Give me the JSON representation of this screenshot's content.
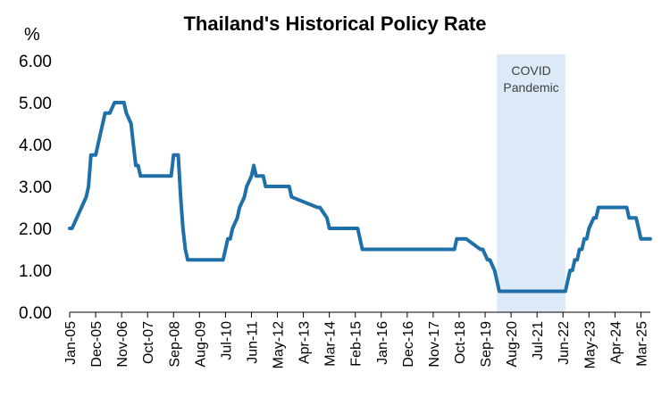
{
  "chart_data": {
    "type": "line",
    "title": "Thailand's Historical Policy Rate",
    "ylabel": "%",
    "xlabel": "",
    "ylim": [
      0,
      6
    ],
    "yticks": [
      "0.00",
      "1.00",
      "2.00",
      "3.00",
      "4.00",
      "5.00",
      "6.00"
    ],
    "xticks": [
      "Jan-05",
      "Dec-05",
      "Nov-06",
      "Oct-07",
      "Sep-08",
      "Aug-09",
      "Jul-10",
      "Jun-11",
      "May-12",
      "Apr-13",
      "Mar-14",
      "Feb-15",
      "Jan-16",
      "Dec-16",
      "Nov-17",
      "Oct-18",
      "Sep-19",
      "Aug-20",
      "Jul-21",
      "Jun-22",
      "May-23",
      "Apr-24",
      "Mar-25"
    ],
    "grid": false,
    "line_color": "#1f6fa8",
    "shade_color": "#dce9f7",
    "annotation": {
      "lines": [
        "COVID",
        "Pandemic"
      ],
      "x_start": "Feb-20",
      "x_end": "Jul-22"
    },
    "series": [
      {
        "x": [
          "Jan-05",
          "Feb-05",
          "Apr-05",
          "Jun-05",
          "Aug-05",
          "Sep-05",
          "Oct-05",
          "Dec-05",
          "Feb-06",
          "Mar-06",
          "Apr-06",
          "Jun-06",
          "Aug-06",
          "Sep-06",
          "Oct-06",
          "Nov-06",
          "Dec-06",
          "Jan-07",
          "Mar-07",
          "Apr-07",
          "May-07",
          "Jun-07",
          "Jul-07",
          "Aug-08",
          "Sep-08",
          "Nov-08",
          "Dec-08",
          "Jan-09",
          "Feb-09",
          "Mar-09",
          "Apr-09",
          "Jun-10",
          "Jul-10",
          "Aug-10",
          "Sep-10",
          "Oct-10",
          "Dec-10",
          "Jan-11",
          "Mar-11",
          "Apr-11",
          "Jun-11",
          "Jul-11",
          "Aug-11",
          "Sep-11",
          "Nov-11",
          "Dec-11",
          "Jan-12",
          "Feb-12",
          "Oct-12",
          "Nov-12",
          "Oct-13",
          "Nov-13",
          "Feb-14",
          "Mar-14",
          "Mar-15",
          "Apr-15",
          "Apr-15",
          "May-15",
          "Aug-18",
          "Sep-18",
          "Dec-18",
          "Jan-19",
          "Jul-19",
          "Aug-19",
          "Oct-19",
          "Nov-19",
          "Jan-20",
          "Feb-20",
          "Mar-20",
          "Apr-20",
          "May-20",
          "Jul-22",
          "Aug-22",
          "Sep-22",
          "Oct-22",
          "Nov-22",
          "Dec-22",
          "Jan-23",
          "Feb-23",
          "Mar-23",
          "Apr-23",
          "May-23",
          "Jul-23",
          "Aug-23",
          "Sep-23",
          "Sep-24",
          "Oct-24",
          "Dec-24",
          "Jan-25",
          "Feb-25",
          "Mar-25",
          "Jul-25"
        ],
        "y": [
          2.0,
          2.0,
          2.25,
          2.5,
          2.75,
          3.0,
          3.75,
          3.75,
          4.25,
          4.5,
          4.75,
          4.75,
          5.0,
          5.0,
          5.0,
          5.0,
          5.0,
          4.75,
          4.5,
          4.0,
          3.5,
          3.5,
          3.25,
          3.25,
          3.75,
          3.75,
          2.75,
          2.0,
          1.5,
          1.25,
          1.25,
          1.25,
          1.5,
          1.75,
          1.75,
          2.0,
          2.25,
          2.5,
          2.75,
          3.0,
          3.25,
          3.5,
          3.25,
          3.25,
          3.25,
          3.0,
          3.0,
          3.0,
          3.0,
          2.75,
          2.5,
          2.5,
          2.25,
          2.0,
          2.0,
          1.75,
          1.75,
          1.5,
          1.5,
          1.75,
          1.75,
          1.75,
          1.5,
          1.5,
          1.25,
          1.25,
          1.0,
          0.75,
          0.5,
          0.5,
          0.5,
          0.5,
          0.75,
          1.0,
          1.0,
          1.25,
          1.25,
          1.5,
          1.5,
          1.75,
          1.75,
          2.0,
          2.25,
          2.25,
          2.5,
          2.5,
          2.25,
          2.25,
          2.25,
          2.0,
          1.75,
          1.75
        ]
      }
    ]
  }
}
